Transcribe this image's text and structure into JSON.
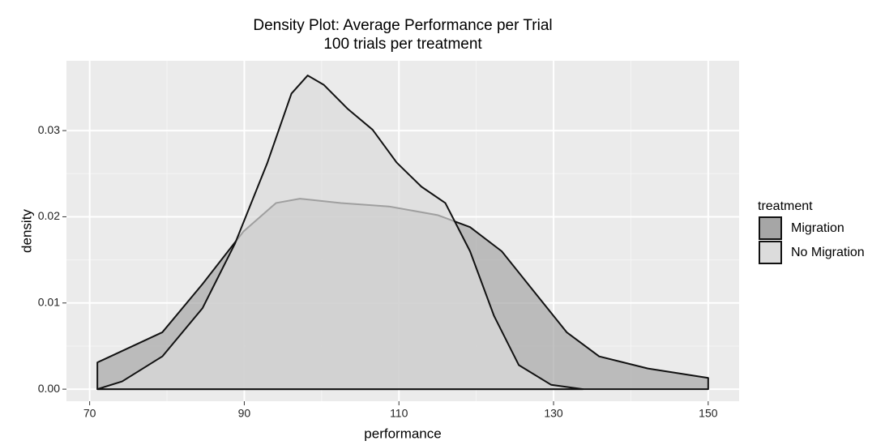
{
  "chart_data": {
    "type": "density",
    "title": "Density Plot: Average Performance per Trial",
    "subtitle": "100 trials per treatment",
    "x_label": "performance",
    "y_label": "density",
    "legend_title": "treatment",
    "legend_position": "right",
    "xlim": [
      67,
      154
    ],
    "ylim": [
      -0.0014,
      0.0381
    ],
    "xticks": [
      70,
      90,
      110,
      130,
      150
    ],
    "yticks": [
      {
        "value": 0,
        "label": "0.00"
      },
      0.01,
      0.02,
      0.03
    ],
    "grid": true,
    "series": [
      {
        "name": "Migration",
        "color": "#a6a6a6",
        "x": [
          71,
          79.4,
          84.6,
          89.9,
          94.1,
          97.2,
          102.5,
          108.7,
          115,
          119.2,
          123.3,
          127.5,
          131.7,
          135.9,
          142.2,
          150
        ],
        "values": [
          0.0031,
          0.0066,
          0.0122,
          0.0183,
          0.0216,
          0.0221,
          0.0216,
          0.0212,
          0.0202,
          0.0188,
          0.016,
          0.0113,
          0.0066,
          0.0038,
          0.0024,
          0.0013
        ]
      },
      {
        "name": "No Migration",
        "color": "#dcdcdc",
        "x": [
          71,
          74.2,
          79.4,
          84.6,
          88.8,
          93,
          96.1,
          98.2,
          100.3,
          103.4,
          106.6,
          109.7,
          112.9,
          116,
          119.2,
          122.3,
          125.5,
          129.7,
          133.8
        ],
        "values": [
          0,
          0.0009,
          0.0038,
          0.0094,
          0.0169,
          0.0263,
          0.0343,
          0.0364,
          0.0353,
          0.0325,
          0.0301,
          0.0263,
          0.0235,
          0.0216,
          0.016,
          0.0085,
          0.0028,
          0.0005,
          0
        ]
      }
    ]
  }
}
